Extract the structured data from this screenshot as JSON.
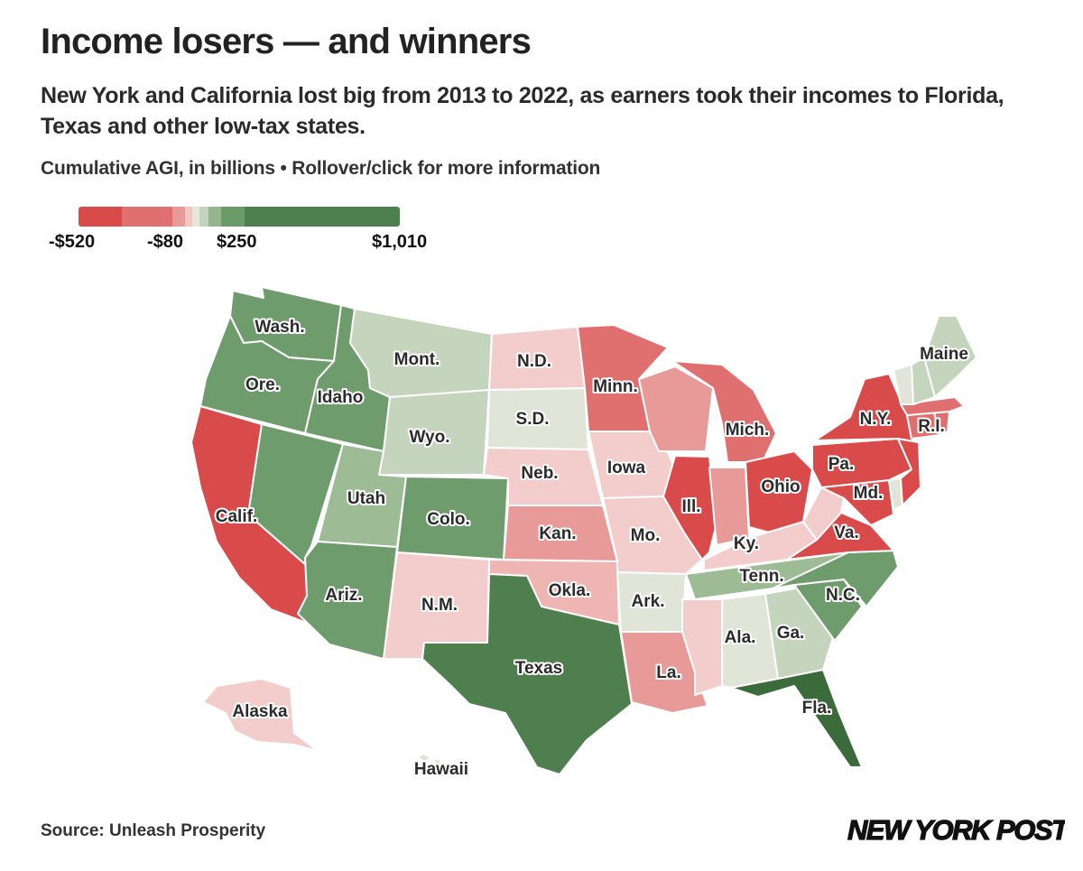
{
  "title": "Income losers — and winners",
  "subtitle": "New York and California lost big from 2013 to 2022, as earners took their incomes to Florida, Texas and other low-tax states.",
  "note": "Cumulative AGI, in billions • Rollover/click for more information",
  "legend": {
    "labels": [
      "-$520",
      "-$80",
      "$250",
      "$1,010"
    ],
    "colors": [
      "#d94a4a",
      "#e07070",
      "#e89a98",
      "#f2c8c6",
      "#e3e8dc",
      "#c3d3bb",
      "#95b58c",
      "#6a9a68",
      "#4d7f4f"
    ]
  },
  "palette": {
    "r5": "#d94a4a",
    "r4": "#e07070",
    "r3": "#e89a98",
    "r2": "#eeb5b2",
    "r1": "#f3cdcb",
    "g0": "#e0e5d8",
    "g1": "#c5d4bd",
    "g2": "#9dbb94",
    "g3": "#6f9c6c",
    "g4": "#4f7f4f",
    "g5": "#3b6a3b"
  },
  "states": [
    {
      "name": "Wash.",
      "color": "g3"
    },
    {
      "name": "Ore.",
      "color": "g3"
    },
    {
      "name": "Calif.",
      "color": "r5"
    },
    {
      "name": "Idaho",
      "color": "g3"
    },
    {
      "name": "Nev.",
      "color": "g3"
    },
    {
      "name": "Mont.",
      "color": "g1"
    },
    {
      "name": "Wyo.",
      "color": "g1"
    },
    {
      "name": "Utah",
      "color": "g2"
    },
    {
      "name": "Ariz.",
      "color": "g3"
    },
    {
      "name": "Colo.",
      "color": "g3"
    },
    {
      "name": "N.M.",
      "color": "r1"
    },
    {
      "name": "N.D.",
      "color": "r1"
    },
    {
      "name": "S.D.",
      "color": "g0"
    },
    {
      "name": "Neb.",
      "color": "r1"
    },
    {
      "name": "Kan.",
      "color": "r3"
    },
    {
      "name": "Okla.",
      "color": "r2"
    },
    {
      "name": "Texas",
      "color": "g4"
    },
    {
      "name": "Minn.",
      "color": "r4"
    },
    {
      "name": "Iowa",
      "color": "r1"
    },
    {
      "name": "Mo.",
      "color": "r1"
    },
    {
      "name": "Ark.",
      "color": "g0"
    },
    {
      "name": "La.",
      "color": "r3"
    },
    {
      "name": "Wis.",
      "color": "r3"
    },
    {
      "name": "Ill.",
      "color": "r5"
    },
    {
      "name": "Mich.",
      "color": "r4"
    },
    {
      "name": "Ind.",
      "color": "r3"
    },
    {
      "name": "Ohio",
      "color": "r5"
    },
    {
      "name": "Ky.",
      "color": "r1"
    },
    {
      "name": "Tenn.",
      "color": "g2"
    },
    {
      "name": "Miss.",
      "color": "r1"
    },
    {
      "name": "Ala.",
      "color": "g0"
    },
    {
      "name": "Ga.",
      "color": "g1"
    },
    {
      "name": "Fla.",
      "color": "g5"
    },
    {
      "name": "S.C.",
      "color": "g3"
    },
    {
      "name": "N.C.",
      "color": "g3"
    },
    {
      "name": "Va.",
      "color": "r5"
    },
    {
      "name": "W.Va.",
      "color": "r1"
    },
    {
      "name": "Md.",
      "color": "r5"
    },
    {
      "name": "Del.",
      "color": "g0"
    },
    {
      "name": "Pa.",
      "color": "r5"
    },
    {
      "name": "N.J.",
      "color": "r5"
    },
    {
      "name": "N.Y.",
      "color": "r5"
    },
    {
      "name": "Conn.",
      "color": "r4"
    },
    {
      "name": "R.I.",
      "color": "r4"
    },
    {
      "name": "Mass.",
      "color": "r4"
    },
    {
      "name": "Vt.",
      "color": "g0"
    },
    {
      "name": "N.H.",
      "color": "g1"
    },
    {
      "name": "Maine",
      "color": "g1"
    },
    {
      "name": "Alaska",
      "color": "r1"
    },
    {
      "name": "Hawaii",
      "color": "g0"
    }
  ],
  "labels": [
    "Wash.",
    "Ore.",
    "Calif.",
    "Idaho",
    "Mont.",
    "Wyo.",
    "Utah",
    "Ariz.",
    "Colo.",
    "N.M.",
    "N.D.",
    "S.D.",
    "Neb.",
    "Kan.",
    "Okla.",
    "Texas",
    "Minn.",
    "Iowa",
    "Mo.",
    "Ark.",
    "La.",
    "Ill.",
    "Mich.",
    "Ohio",
    "Ky.",
    "Tenn.",
    "Ala.",
    "Ga.",
    "Fla.",
    "N.C.",
    "Va.",
    "Md.",
    "Pa.",
    "N.Y.",
    "R.I.",
    "Maine",
    "Alaska",
    "Hawaii"
  ],
  "source": "Source: Unleash Prosperity",
  "logo": "NEW YORK POST"
}
